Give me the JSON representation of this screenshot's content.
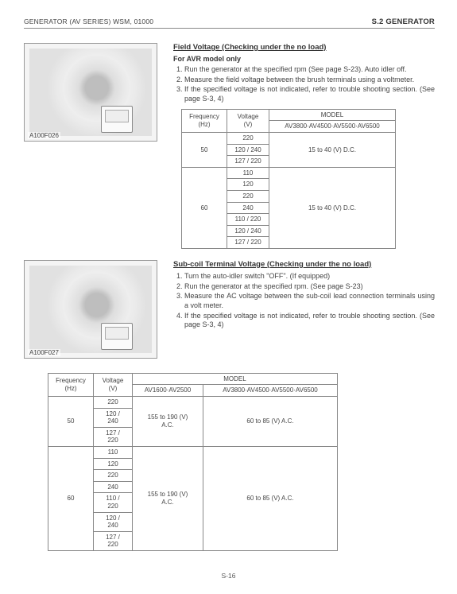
{
  "header": {
    "left": "GENERATOR (AV SERIES)   WSM, 01000",
    "right": "S.2  GENERATOR"
  },
  "section1": {
    "photo_label": "A100F026",
    "title": "Field Voltage (Checking under the no load)",
    "subtitle": "For AVR model only",
    "steps": [
      "Run the generator at the specified rpm (See page S-23).  Auto idler off.",
      "Measure the field voltage between the brush terminals using a voltmeter.",
      "If the specified voltage is not indicated, refer to trouble shooting section. (See page S-3, 4)"
    ],
    "table": {
      "headers": {
        "freq": "Frequency\n(Hz)",
        "volt": "Voltage\n(V)",
        "model": "MODEL",
        "model_sub": "AV3800·AV4500·AV5500·AV6500"
      },
      "rows50": [
        "220",
        "120 / 240",
        "127 / 220"
      ],
      "rows60": [
        "110",
        "120",
        "220",
        "240",
        "110 / 220",
        "120 / 240",
        "127 / 220"
      ],
      "val": "15 to 40 (V) D.C."
    }
  },
  "section2": {
    "photo_label": "A100F027",
    "title": "Sub-coil Terminal Voltage (Checking under the no load)",
    "steps": [
      "Turn the auto-idler switch \"OFF\".  (If equipped)",
      "Run the generator at the specified rpm.  (See page S-23)",
      "Measure the AC voltage between the sub-coil lead connection terminals using a volt meter.",
      "If the specified voltage is not indicated, refer to trouble shooting section.  (See page S-3, 4)"
    ],
    "table": {
      "headers": {
        "freq": "Frequency\n(Hz)",
        "volt": "Voltage\n(V)",
        "model": "MODEL",
        "m1": "AV1600·AV2500",
        "m2": "AV3800·AV4500·AV5500·AV6500"
      },
      "rows50": [
        "220",
        "120 /\n240",
        "127 /\n220"
      ],
      "rows60": [
        "110",
        "120",
        "220",
        "240",
        "110 /\n220",
        "120 /\n240",
        "127 /\n220"
      ],
      "val1": "155 to 190 (V)\nA.C.",
      "val2": "60 to 85 (V) A.C."
    }
  },
  "footer": "S-16"
}
